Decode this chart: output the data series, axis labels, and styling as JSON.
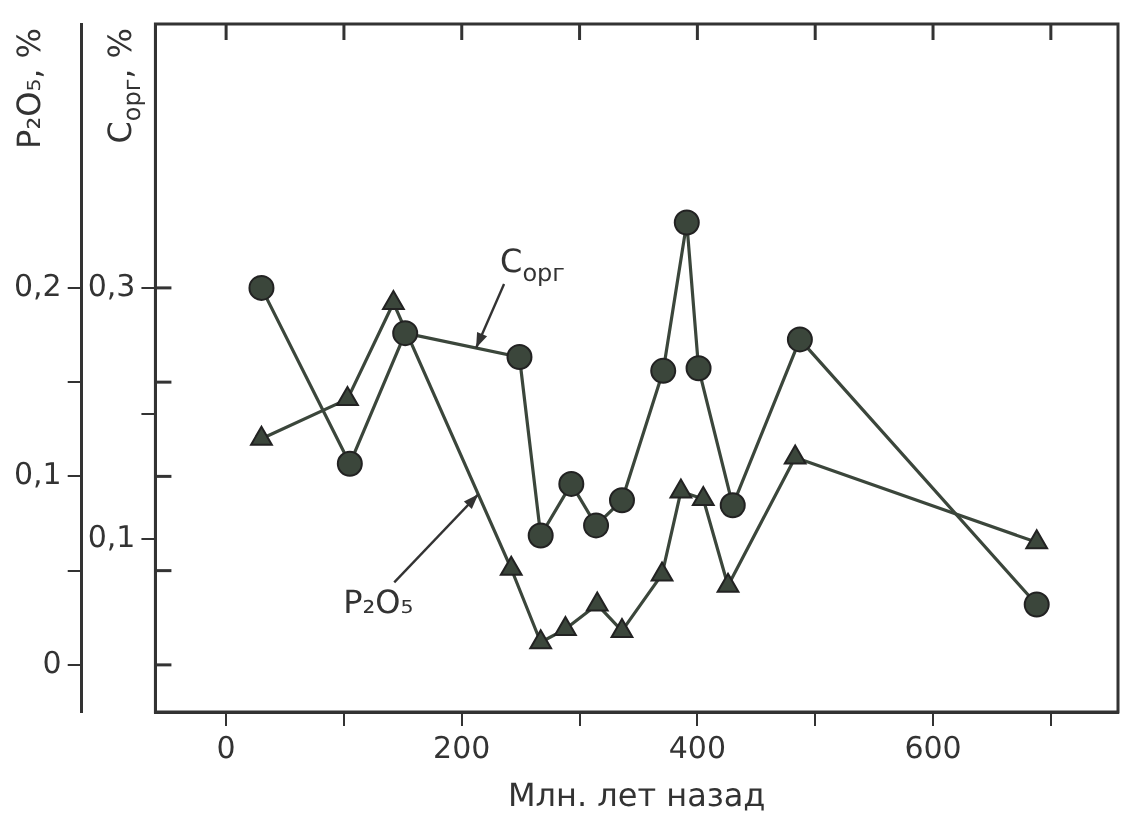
{
  "chart_data": {
    "type": "line",
    "xlabel": "Млн. лет назад",
    "ylabel": "P₂O₅, %",
    "y2label": "C$_{орг}$, %",
    "legend": false,
    "grid": false,
    "xlim": [
      -60,
      757
    ],
    "xticks": [
      0,
      {
        "value": 100,
        "label": null
      },
      200,
      {
        "value": 300,
        "label": null
      },
      400,
      {
        "value": 500,
        "label": null
      },
      600,
      {
        "value": 700,
        "label": null
      }
    ],
    "ylim": [
      -0.025,
      0.34
    ],
    "yticks": [
      0,
      {
        "value": 0.05,
        "label": null
      },
      {
        "value": 0.1,
        "label": "0,1"
      },
      {
        "value": 0.15,
        "label": null
      },
      {
        "value": 0.2,
        "label": "0,2"
      }
    ],
    "y2lim": [
      -0.0375,
      0.51
    ],
    "y2ticks": [
      {
        "value": 0.1,
        "label": "0,1"
      },
      {
        "value": 0.2,
        "label": null
      },
      {
        "value": 0.3,
        "label": "0,3"
      }
    ],
    "series": [
      {
        "name": "C$_{орг}$",
        "axis": "y2",
        "marker": "circle",
        "color": "#3b463b",
        "x": [
          30,
          105,
          152,
          249,
          267,
          293,
          314,
          336,
          371,
          391,
          401,
          430,
          487,
          688
        ],
        "values": [
          0.3,
          0.16,
          0.264,
          0.245,
          0.103,
          0.144,
          0.111,
          0.131,
          0.234,
          0.352,
          0.236,
          0.127,
          0.259,
          0.048
        ]
      },
      {
        "name": "P₂O₅",
        "axis": "y",
        "marker": "triangle",
        "color": "#3b463b",
        "x": [
          30,
          103,
          142,
          242,
          267,
          288,
          315,
          336,
          370,
          386,
          405,
          426,
          483,
          688
        ],
        "values": [
          0.12,
          0.141,
          0.192,
          0.051,
          0.012,
          0.019,
          0.032,
          0.018,
          0.048,
          0.092,
          0.088,
          0.042,
          0.11,
          0.065
        ]
      }
    ]
  }
}
